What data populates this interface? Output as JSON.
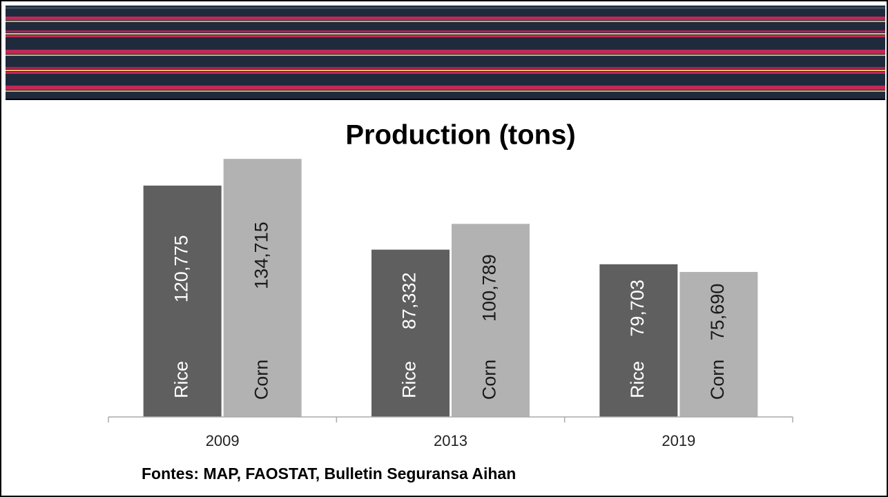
{
  "chart_data": {
    "type": "bar",
    "title": "Production (tons)",
    "categories": [
      "2009",
      "2013",
      "2019"
    ],
    "series": [
      {
        "name": "Rice",
        "color": "#5f5f5f",
        "label_color": "#ffffff",
        "values": [
          120775,
          87332,
          79703
        ],
        "value_labels": [
          "120,775",
          "87,332",
          "79,703"
        ]
      },
      {
        "name": "Corn",
        "color": "#b2b2b2",
        "label_color": "#1a1a1a",
        "values": [
          134715,
          100789,
          75690
        ],
        "value_labels": [
          "134,715",
          "100,789",
          "75,690"
        ]
      }
    ],
    "ylim": [
      0,
      160000
    ],
    "source": "Fontes: MAP, FAOSTAT, Bulletin Seguransa Aihan"
  }
}
